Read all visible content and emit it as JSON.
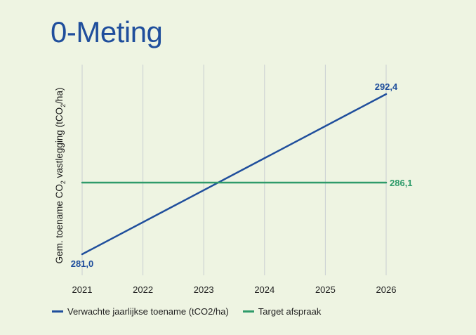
{
  "page_title": "0-Meting",
  "colors": {
    "primary": "#1f4e9c",
    "target": "#2e9b6a",
    "grid": "#c9ced2",
    "background": "#eef4e2"
  },
  "chart_data": {
    "type": "line",
    "title": "0-Meting",
    "ylabel_main": "Gem. toename CO",
    "ylabel_sub": "2",
    "ylabel_tail": " vastlegging  (tCO",
    "ylabel_sub2": "2",
    "ylabel_end": "/ha)",
    "xlabel": "",
    "x": [
      "2021",
      "2022",
      "2023",
      "2024",
      "2025",
      "2026"
    ],
    "ylim": [
      279.5,
      294.5
    ],
    "grid": true,
    "legend_position": "bottom-left",
    "series": [
      {
        "name": "Verwachte jaarlijkse toename (tCO2/ha)",
        "color": "#1f4e9c",
        "points": [
          [
            2021,
            281.0
          ],
          [
            2026,
            292.4
          ]
        ],
        "labels": [
          {
            "x": 2021,
            "y": 281.0,
            "text": "281,0",
            "position": "below"
          },
          {
            "x": 2026,
            "y": 292.4,
            "text": "292,4",
            "position": "above"
          }
        ]
      },
      {
        "name": "Target afspraak",
        "color": "#2e9b6a",
        "points": [
          [
            2021,
            286.1
          ],
          [
            2026,
            286.1
          ]
        ],
        "labels": [
          {
            "x": 2026,
            "y": 286.1,
            "text": "286,1",
            "position": "right"
          }
        ]
      }
    ]
  },
  "legend": {
    "items": [
      "Verwachte jaarlijkse toename (tCO2/ha)",
      "Target afspraak"
    ]
  }
}
